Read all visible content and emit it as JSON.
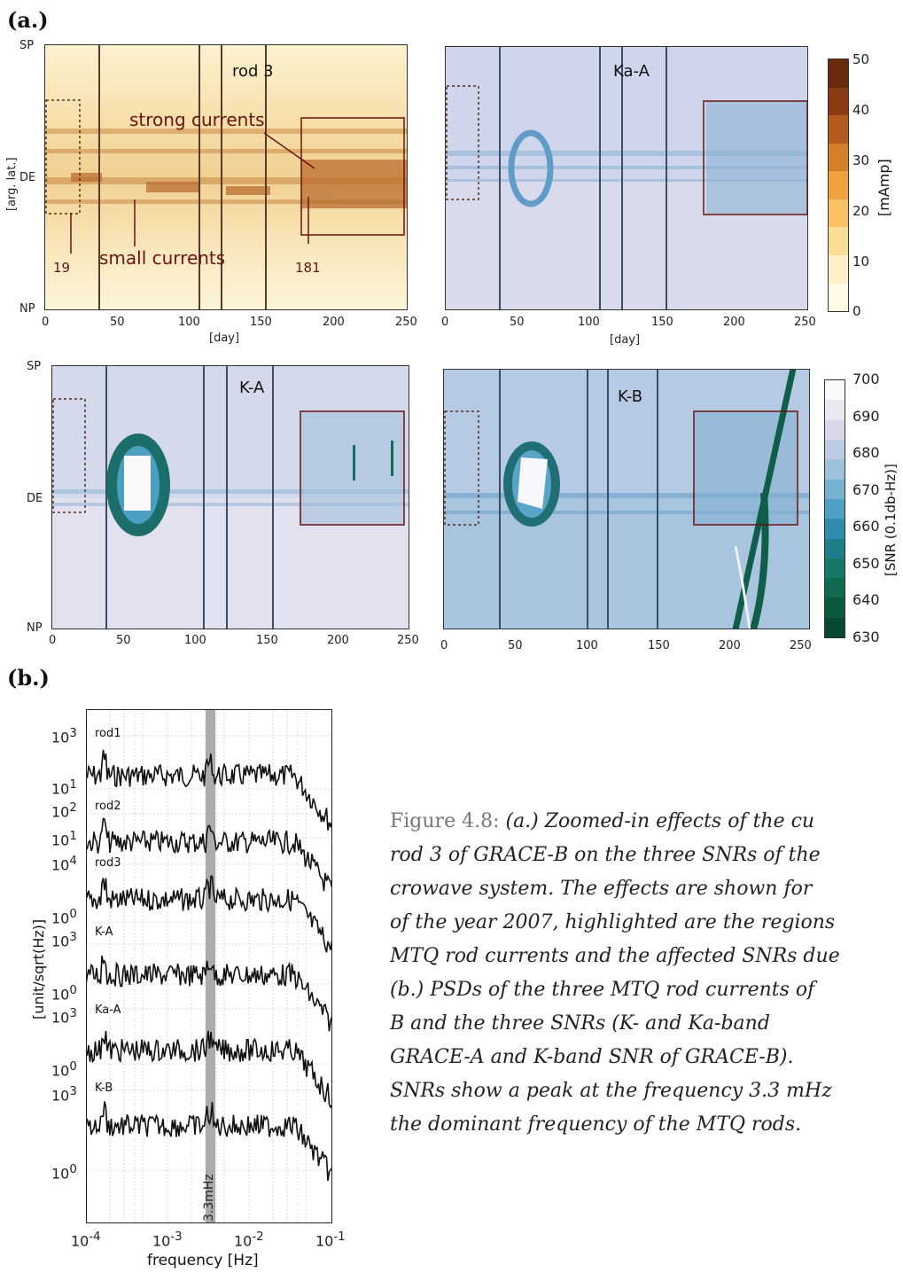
{
  "panel_a_label": "(a.)",
  "panel_b_label": "(b.)",
  "axes": {
    "ylabel_lat": "[arg. lat.]",
    "yticks": [
      "SP",
      "DE",
      "NP"
    ],
    "xticks": [
      "0",
      "50",
      "100",
      "150",
      "200",
      "250"
    ],
    "xlabel_day": "[day]"
  },
  "plots": {
    "rod3": "rod 3",
    "kaa": "Ka-A",
    "ka": "K-A",
    "kb": "K-B"
  },
  "annotations": {
    "strong": "strong currents",
    "small": "small currents",
    "n19": "19",
    "n181": "181"
  },
  "colorbar_current": {
    "ticks": [
      "50",
      "40",
      "30",
      "20",
      "10",
      "0"
    ],
    "label": "[mAmp]",
    "colors": [
      "#6b2a0e",
      "#8a3c12",
      "#b65a1d",
      "#d67f2a",
      "#f0a23e",
      "#f7c366",
      "#fbdd95",
      "#fdf0c6",
      "#fefae4"
    ]
  },
  "colorbar_snr": {
    "ticks": [
      "700",
      "690",
      "680",
      "670",
      "660",
      "650",
      "640",
      "630"
    ],
    "label": "[SNR (0.1db-Hz)]",
    "colors": [
      "#fbf9fc",
      "#ece8f3",
      "#d7d6ea",
      "#bccbe1",
      "#9ec1dc",
      "#77b2d3",
      "#4f9fc6",
      "#2f8caf",
      "#1f7e8c",
      "#177869",
      "#0f6a4f",
      "#0a5a3c",
      "#064830"
    ]
  },
  "psd": {
    "ylabel": "[unit/sqrt(Hz)]",
    "xlabel": "frequency [Hz]",
    "freq_marker": "3.3mHz",
    "curves": [
      "rod1",
      "rod2",
      "rod3",
      "K-A",
      "Ka-A",
      "K-B"
    ],
    "yticks": [
      {
        "base": "10",
        "exp": "3"
      },
      {
        "base": "10",
        "exp": "1"
      },
      {
        "base": "10",
        "exp": "2"
      },
      {
        "base": "10",
        "exp": "1"
      },
      {
        "base": "10",
        "exp": "4"
      },
      {
        "base": "10",
        "exp": "0"
      },
      {
        "base": "10",
        "exp": "3"
      },
      {
        "base": "10",
        "exp": "0"
      },
      {
        "base": "10",
        "exp": "3"
      },
      {
        "base": "10",
        "exp": "0"
      },
      {
        "base": "10",
        "exp": "3"
      },
      {
        "base": "10",
        "exp": "0"
      }
    ],
    "xticks": [
      {
        "base": "10",
        "exp": "-4"
      },
      {
        "base": "10",
        "exp": "-3"
      },
      {
        "base": "10",
        "exp": "-2"
      },
      {
        "base": "10",
        "exp": "-1"
      }
    ]
  },
  "caption": {
    "number": "Figure 4.8:",
    "lines": [
      "(a.) Zoomed-in effects of the cu",
      "rod 3 of GRACE-B on the three SNRs of the",
      "crowave system. The effects are shown for",
      "of the year 2007, highlighted are the regions",
      "MTQ rod currents and the affected SNRs due",
      "(b.) PSDs of the three MTQ rod currents of",
      "B and the three SNRs (K- and Ka-band",
      "GRACE-A and K-band SNR of GRACE-B).",
      "SNRs show a peak at the frequency 3.3 mHz",
      "the dominant frequency of the MTQ rods."
    ]
  }
}
